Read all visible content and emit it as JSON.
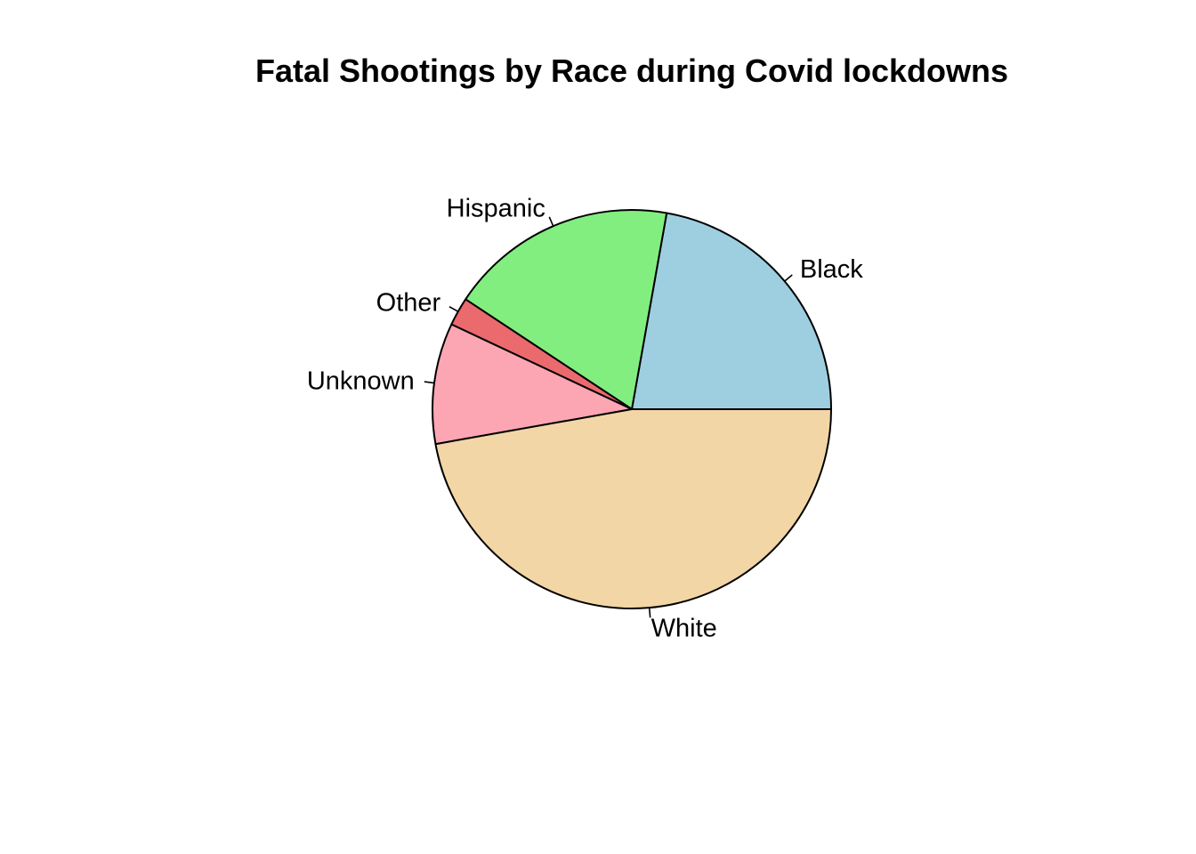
{
  "chart_data": {
    "type": "pie",
    "title": "Fatal Shootings by Race during Covid lockdowns",
    "start_angle_deg": 0,
    "direction": "counterclockwise",
    "slices": [
      {
        "label": "Black",
        "value": 22.2,
        "color": "#9ECFE0"
      },
      {
        "label": "Hispanic",
        "value": 18.5,
        "color": "#82EE80"
      },
      {
        "label": "Other",
        "value": 2.3,
        "color": "#EB6A6E"
      },
      {
        "label": "Unknown",
        "value": 9.8,
        "color": "#FCA6B3"
      },
      {
        "label": "White",
        "value": 47.2,
        "color": "#F2D6A6"
      }
    ]
  }
}
